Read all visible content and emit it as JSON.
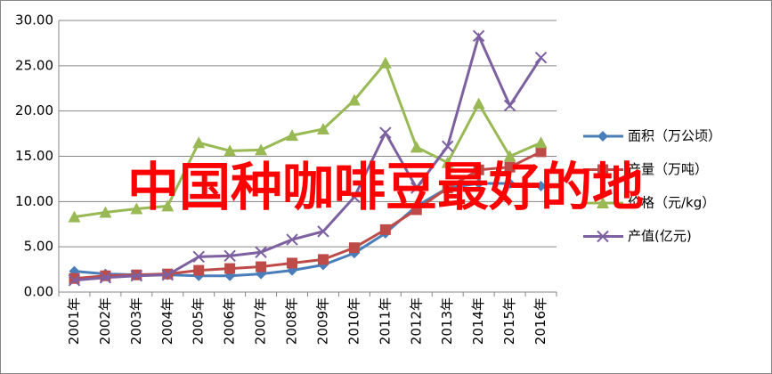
{
  "chart_data": {
    "type": "line",
    "title": "中国种咖啡豆最好的地",
    "categories": [
      "2001年",
      "2002年",
      "2003年",
      "2004年",
      "2005年",
      "2006年",
      "2007年",
      "2008年",
      "2009年",
      "2010年",
      "2011年",
      "2012年",
      "2013年",
      "2014年",
      "2015年",
      "2016年"
    ],
    "series": [
      {
        "name": "面积（万公顷）",
        "color": "#4a7ebb",
        "marker": "diamond",
        "values": [
          2.3,
          2.0,
          1.9,
          1.9,
          1.8,
          1.8,
          2.0,
          2.4,
          3.0,
          4.3,
          6.5,
          9.5,
          11.5,
          12.0,
          12.0,
          11.7
        ]
      },
      {
        "name": "产量（万吨）",
        "color": "#be4b48",
        "marker": "square",
        "values": [
          1.5,
          1.8,
          1.9,
          2.0,
          2.4,
          2.6,
          2.8,
          3.2,
          3.6,
          4.9,
          6.9,
          9.1,
          11.5,
          13.5,
          13.8,
          15.5
        ]
      },
      {
        "name": "价格（元/kg）",
        "color": "#98b954",
        "marker": "triangle",
        "values": [
          8.3,
          8.8,
          9.2,
          9.5,
          16.5,
          15.6,
          15.7,
          17.3,
          18.0,
          21.2,
          25.3,
          16.0,
          14.3,
          20.8,
          15.0,
          16.5
        ]
      },
      {
        "name": "产值(亿元)",
        "color": "#7d60a0",
        "marker": "x",
        "values": [
          1.3,
          1.6,
          1.8,
          1.9,
          3.9,
          4.0,
          4.4,
          5.8,
          6.7,
          10.5,
          17.6,
          11.5,
          16.1,
          28.3,
          20.6,
          25.9
        ]
      }
    ],
    "ylim": [
      0,
      30
    ],
    "yticks": [
      {
        "value": 0,
        "label": "0.00"
      },
      {
        "value": 5,
        "label": "5.00"
      },
      {
        "value": 10,
        "label": "10.00"
      },
      {
        "value": 15,
        "label": "15.00"
      },
      {
        "value": 20,
        "label": "20.00"
      },
      {
        "value": 25,
        "label": "25.00"
      },
      {
        "value": 30,
        "label": "30.00"
      }
    ],
    "grid": true,
    "legend": "right"
  }
}
